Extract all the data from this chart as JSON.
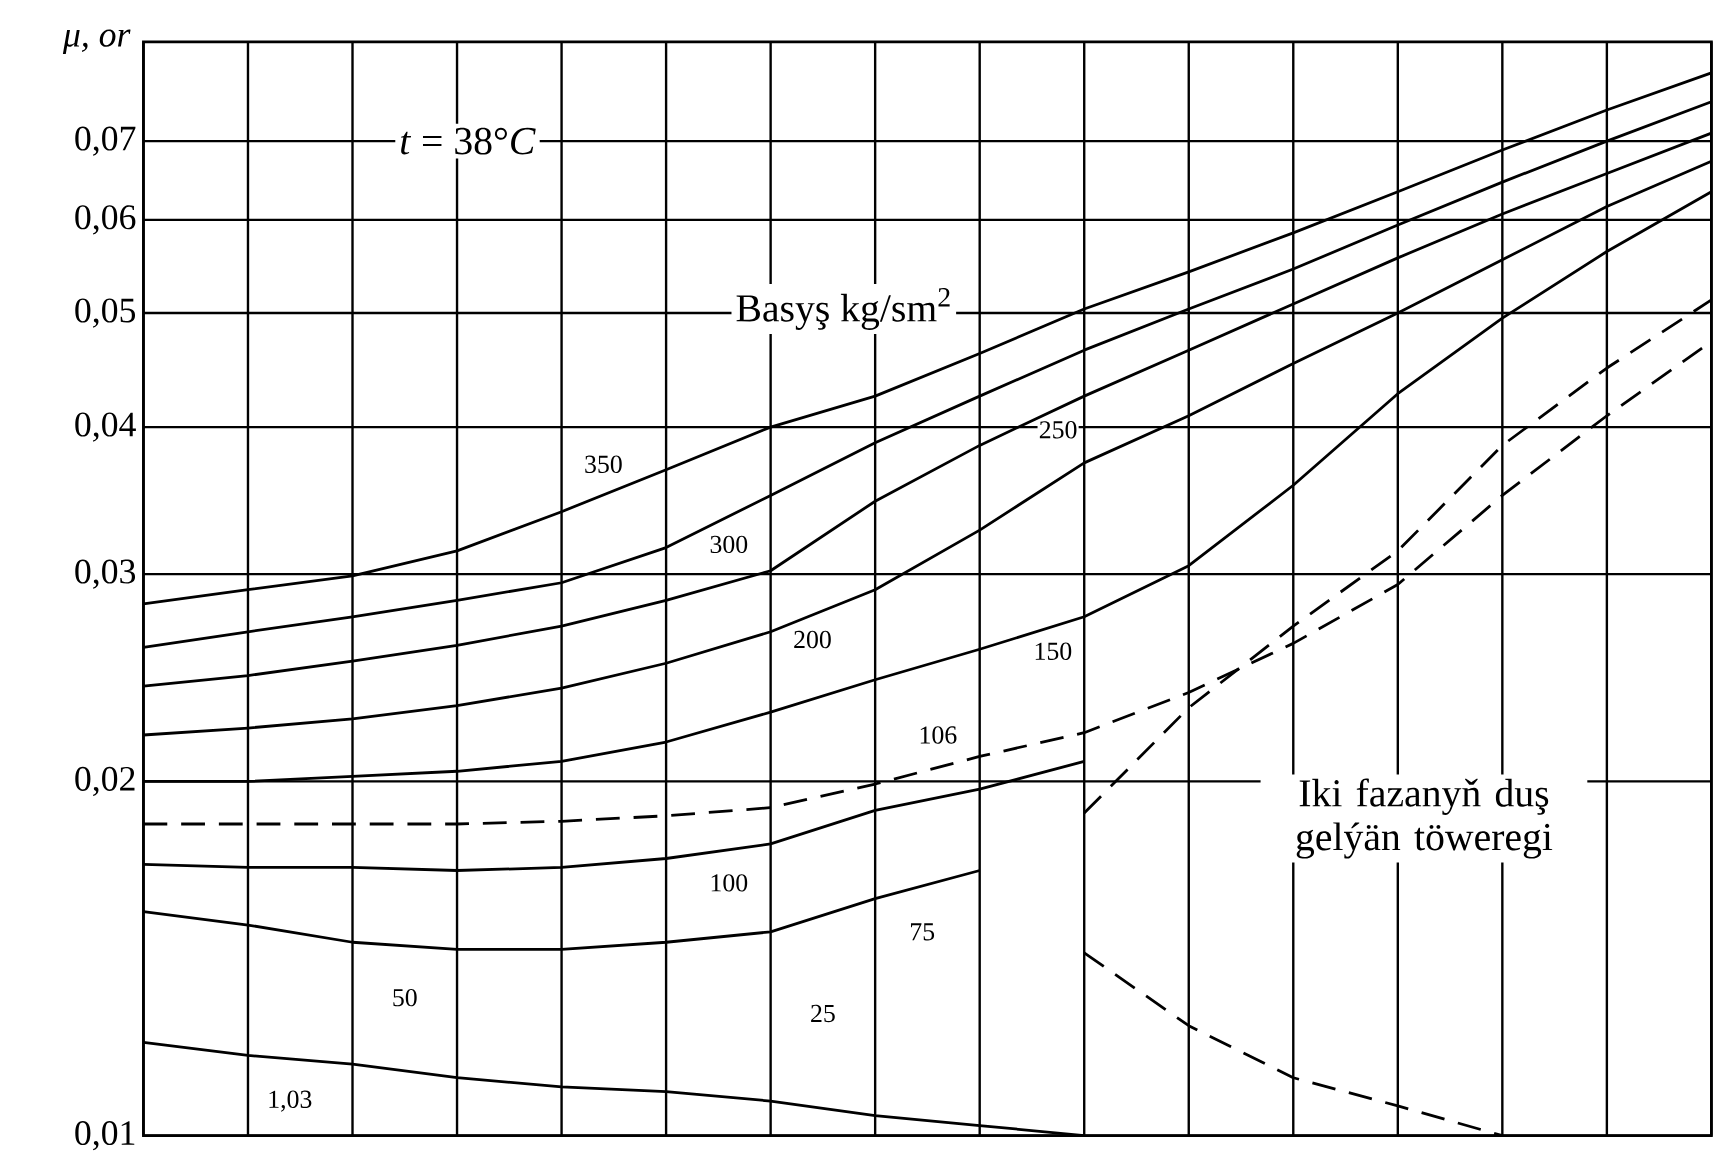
{
  "chart_data": {
    "type": "line",
    "ylabel": "μ, or",
    "log": "y",
    "grid": true,
    "tick_labels": "y",
    "categories": [
      null,
      null,
      null,
      null,
      null,
      null,
      null,
      null,
      null,
      null,
      null,
      null,
      null,
      null,
      null,
      null
    ],
    "ylim": [
      0.01,
      0.085
    ],
    "yticks": [
      {
        "value": 0.01,
        "label": "0,01"
      },
      {
        "value": 0.02,
        "label": "0,02"
      },
      {
        "value": 0.03,
        "label": "0,03"
      },
      {
        "value": 0.04,
        "label": "0,04"
      },
      {
        "value": 0.05,
        "label": "0,05"
      },
      {
        "value": 0.06,
        "label": "0,06"
      },
      {
        "value": 0.07,
        "label": "0,07"
      }
    ],
    "series": [
      {
        "name": "350",
        "color": "#000000",
        "values": [
          0.0283,
          0.0291,
          0.0299,
          0.0314,
          0.0339,
          0.0368,
          0.04,
          0.0425,
          0.0462,
          0.0504,
          0.0542,
          0.0585,
          0.0634,
          0.0688,
          0.0744,
          0.08
        ]
      },
      {
        "name": "300",
        "color": "#000000",
        "values": [
          0.026,
          0.0268,
          0.0276,
          0.0285,
          0.0295,
          0.0316,
          0.035,
          0.0388,
          0.0425,
          0.0465,
          0.0504,
          0.0545,
          0.0594,
          0.0646,
          0.07,
          0.0756
        ]
      },
      {
        "name": "250",
        "color": "#000000",
        "values": [
          0.0241,
          0.0246,
          0.0253,
          0.0261,
          0.0271,
          0.0285,
          0.0302,
          0.0346,
          0.0386,
          0.0425,
          0.0465,
          0.0509,
          0.0557,
          0.0607,
          0.0657,
          0.0711
        ]
      },
      {
        "name": "200",
        "color": "#000000",
        "values": [
          0.0219,
          0.0222,
          0.0226,
          0.0232,
          0.024,
          0.0252,
          0.0268,
          0.0291,
          0.0327,
          0.0373,
          0.0409,
          0.0453,
          0.05,
          0.0555,
          0.0616,
          0.0673
        ]
      },
      {
        "name": "150",
        "color": "#000000",
        "values": [
          0.02,
          0.02,
          0.0202,
          0.0204,
          0.0208,
          0.0216,
          0.0229,
          0.0244,
          0.0259,
          0.0276,
          0.0305,
          0.0357,
          0.0427,
          0.0495,
          0.0564,
          0.0634
        ]
      },
      {
        "name": "106",
        "color": "#000000",
        "line_style": "dashed",
        "values": [
          0.0184,
          0.0184,
          0.0184,
          0.0184,
          0.0185,
          0.0187,
          0.019,
          0.0199,
          0.021,
          0.022,
          0.0238,
          0.0262,
          0.0294,
          0.035,
          0.0409,
          0.0473
        ]
      },
      {
        "name": "100",
        "color": "#000000",
        "values": [
          0.017,
          0.0169,
          0.0169,
          0.0168,
          0.0169,
          0.0172,
          0.0177,
          0.0189,
          0.0197,
          0.0208,
          null,
          null,
          null,
          null,
          null,
          null
        ]
      },
      {
        "name": "75",
        "color": "#000000",
        "values": [
          0.0155,
          0.0151,
          0.0146,
          0.0144,
          0.0144,
          0.0146,
          0.0149,
          0.0159,
          0.0168,
          null,
          null,
          null,
          null,
          null,
          null,
          null
        ]
      },
      {
        "name": "1,03",
        "color": "#000000",
        "values": [
          0.012,
          0.0117,
          0.0115,
          0.0112,
          0.011,
          0.0109,
          0.0107,
          0.0104,
          0.0102,
          0.01,
          null,
          null,
          null,
          null,
          null,
          null
        ]
      },
      {
        "color": "#000000",
        "line_style": "dashed",
        "values": [
          null,
          null,
          null,
          null,
          null,
          null,
          null,
          null,
          null,
          0.0188,
          0.0231,
          0.0271,
          0.0314,
          0.0386,
          0.0449,
          0.0513
        ]
      },
      {
        "color": "#000000",
        "line_style": "dashed",
        "values": [
          null,
          null,
          null,
          null,
          null,
          null,
          null,
          null,
          null,
          0.0143,
          0.0124,
          0.0112,
          0.0106,
          0.01,
          null,
          null
        ]
      }
    ],
    "annotations": [
      "50",
      "25",
      "*t* = 38°*C*",
      "Basyş kg/sm$^{2}$",
      "Iki fazanyň duş gelýän töweregi"
    ]
  }
}
